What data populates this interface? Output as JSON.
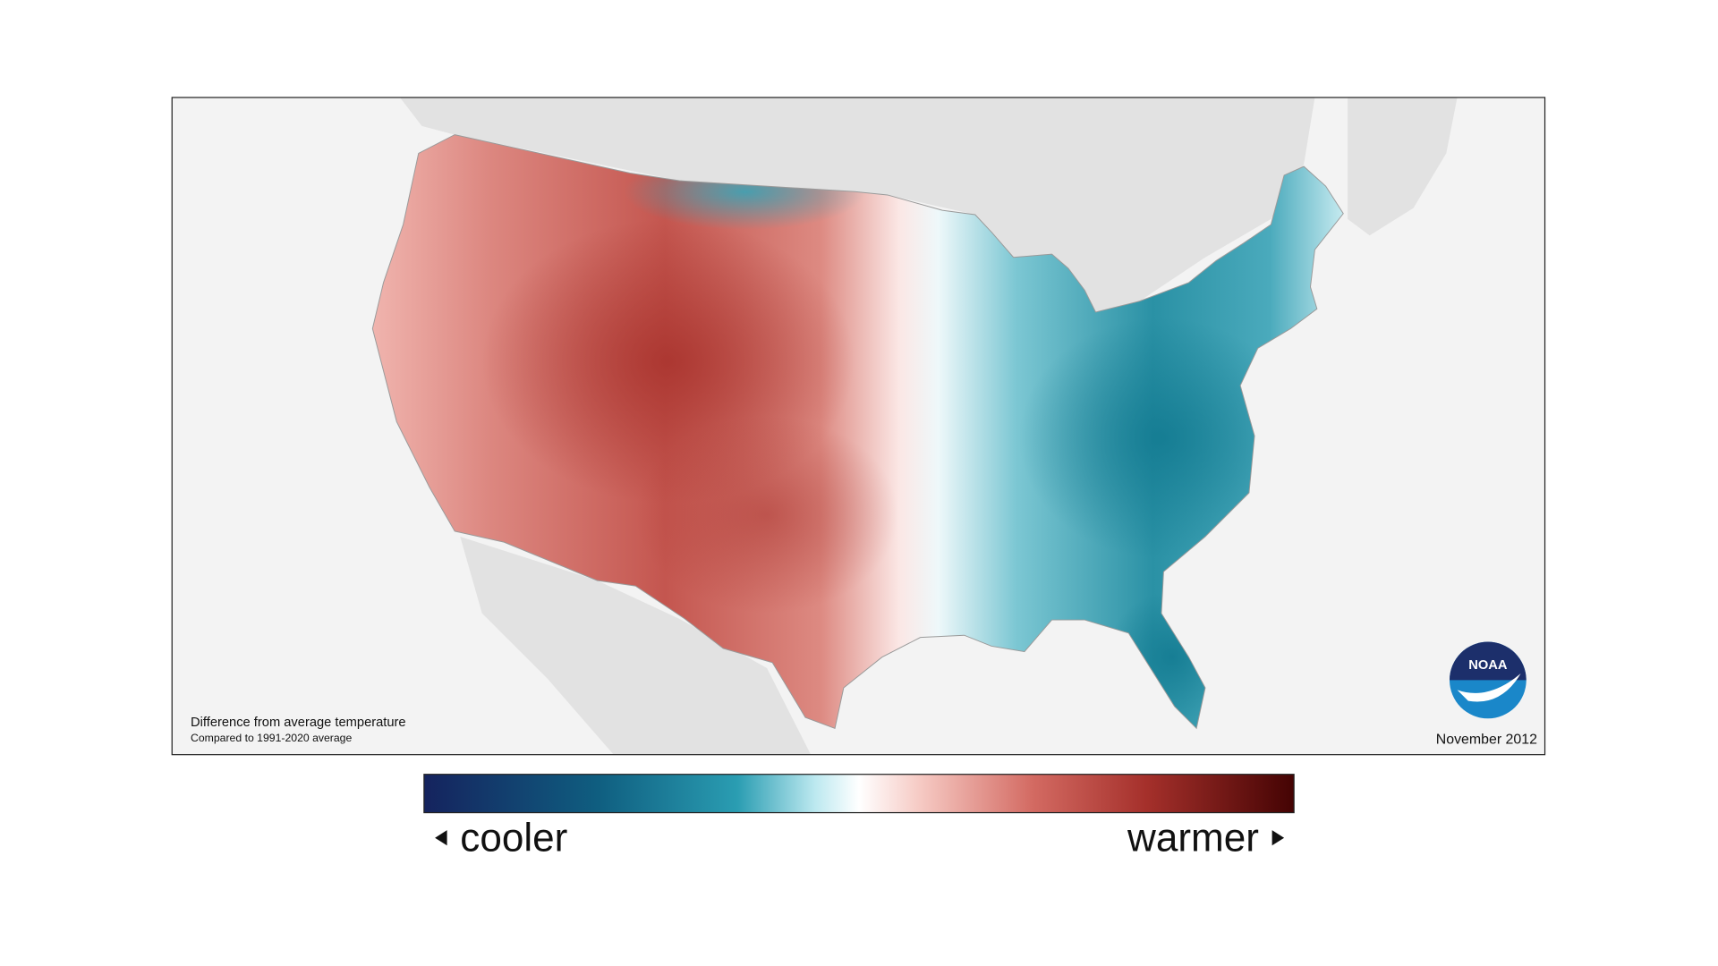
{
  "map": {
    "note_title": "Difference from average temperature",
    "note_subtitle": "Compared to 1991-2020 average",
    "date": "November 2012",
    "logo": "NOAA",
    "legend": {
      "low": "cooler",
      "high": "warmer"
    }
  }
}
